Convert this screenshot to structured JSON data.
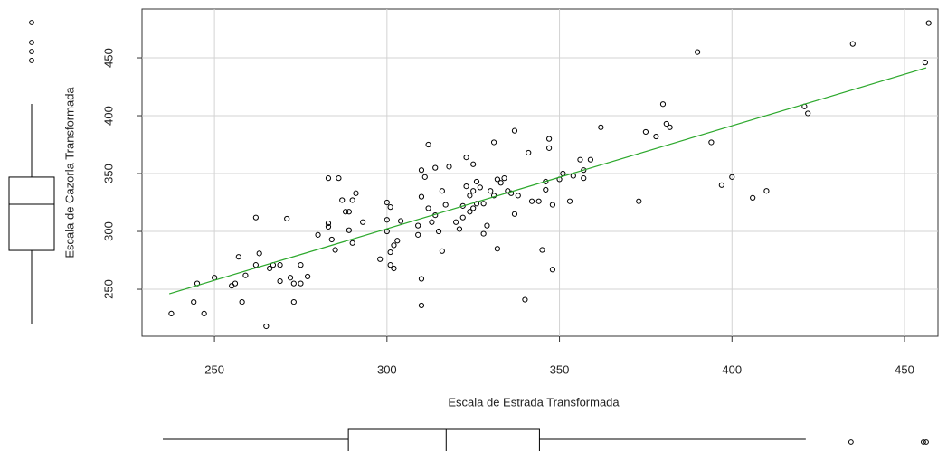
{
  "chart_data": {
    "type": "scatter",
    "x_label": "Escala de Estrada Transformada",
    "y_label": "Escala de Cazorla Transformada",
    "x": [
      237.5,
      244,
      245,
      247,
      250,
      255,
      256,
      257,
      258,
      259,
      262,
      263,
      262,
      265,
      266,
      267,
      269,
      269,
      271,
      272,
      273,
      273,
      275,
      275,
      277,
      280,
      283,
      283,
      283,
      284,
      285,
      286,
      287,
      288,
      289,
      289,
      290,
      290,
      291,
      293,
      298,
      300,
      300,
      300,
      301,
      301,
      301,
      302,
      302,
      303,
      304,
      309,
      309,
      310,
      310,
      310,
      310,
      311,
      312,
      312,
      313,
      314,
      314,
      315,
      316,
      316,
      317,
      318,
      320,
      321,
      322,
      322,
      323,
      323,
      324,
      324,
      325,
      325,
      325,
      326,
      326,
      327,
      328,
      328,
      329,
      330,
      331,
      331,
      332,
      332,
      333,
      334,
      335,
      336,
      337,
      337,
      338,
      340,
      341,
      342,
      344,
      345,
      346,
      346,
      347,
      347,
      348,
      348,
      350,
      351,
      353,
      354,
      356,
      357,
      357,
      359,
      362,
      373,
      375,
      378,
      380,
      381,
      382,
      390,
      394,
      397,
      400,
      406,
      410,
      421,
      422,
      435,
      456,
      457
    ],
    "values": [
      229,
      239,
      255,
      229,
      260,
      253,
      255,
      278,
      239,
      262,
      271,
      281,
      312,
      218,
      268,
      271,
      271,
      257,
      311,
      260,
      239,
      255,
      255,
      271,
      261,
      297,
      307,
      304,
      346,
      293,
      284,
      346,
      327,
      317,
      317,
      301,
      290,
      327,
      333,
      308,
      276,
      310,
      300,
      325,
      321,
      271,
      282,
      268,
      288,
      292,
      309,
      297,
      305,
      259,
      236,
      353,
      330,
      347,
      320,
      375,
      308,
      314,
      355,
      300,
      283,
      335,
      323,
      356,
      308,
      302,
      312,
      322,
      339,
      364,
      317,
      331,
      358,
      320,
      335,
      343,
      324,
      338,
      298,
      324,
      305,
      335,
      331,
      377,
      285,
      345,
      342,
      346,
      335,
      333,
      387,
      315,
      331,
      241,
      368,
      326,
      326,
      284,
      336,
      343,
      380,
      372,
      323,
      267,
      345,
      350,
      326,
      348,
      362,
      353,
      346,
      362,
      390,
      326,
      386,
      382,
      410,
      393,
      390,
      455,
      377,
      340,
      347,
      329,
      335,
      408,
      402,
      462,
      446,
      480
    ],
    "xlim": [
      229,
      459.7
    ],
    "ylim": [
      209.4,
      492.2
    ],
    "xticks": [
      250,
      300,
      350,
      400,
      450
    ],
    "yticks": [
      250,
      300,
      350,
      400,
      450
    ],
    "grid": true,
    "point_color": "#000000",
    "fit_line": {
      "x": [
        236.9,
        456.3
      ],
      "y": [
        246.1,
        441.4
      ],
      "color": "#2ca82c"
    },
    "x_box": {
      "whisker_low": 237.5,
      "q1": 290.8,
      "median": 318.9,
      "q3": 345.7,
      "whisker_high": 422.2,
      "outliers": [
        435.2,
        456,
        456.8
      ]
    },
    "y_box": {
      "whisker_low": 218,
      "q1": 281.7,
      "median": 321.9,
      "q3": 345.5,
      "whisker_high": 409.2,
      "outliers": [
        447,
        454.8,
        462.7,
        480
      ]
    }
  }
}
